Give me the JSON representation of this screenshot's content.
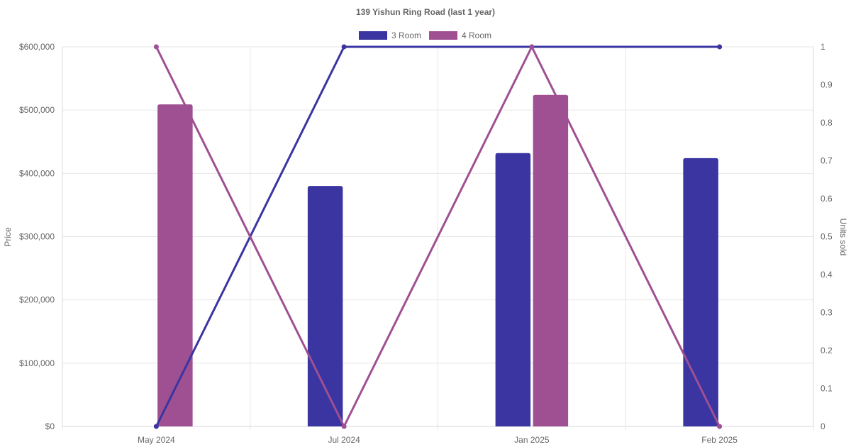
{
  "chart_data": {
    "type": "bar",
    "title": "139 Yishun Ring Road (last 1 year)",
    "categories": [
      "May 2024",
      "Jul 2024",
      "Jan 2025",
      "Feb 2025"
    ],
    "ylabel": "Price",
    "y2label": "Units sold",
    "ylim": [
      0,
      600000
    ],
    "y2lim": [
      0,
      1
    ],
    "yticks": [
      "$0",
      "$100,000",
      "$200,000",
      "$300,000",
      "$400,000",
      "$500,000",
      "$600,000"
    ],
    "y2ticks": [
      "0",
      "0.1",
      "0.2",
      "0.3",
      "0.4",
      "0.5",
      "0.6",
      "0.7",
      "0.8",
      "0.9",
      "1"
    ],
    "grid": true,
    "legend_position": "top",
    "series": [
      {
        "name": "3 Room",
        "kind": "bar",
        "axis": "price",
        "color": "#3a35a0",
        "values": [
          null,
          380000,
          432000,
          424000
        ]
      },
      {
        "name": "4 Room",
        "kind": "bar",
        "axis": "price",
        "color": "#9e5093",
        "values": [
          509000,
          null,
          524000,
          null
        ]
      },
      {
        "kind": "line",
        "axis": "units",
        "color": "#3a35a0",
        "values": [
          0,
          1,
          1,
          1
        ]
      },
      {
        "kind": "line",
        "axis": "units",
        "color": "#9e5093",
        "values": [
          1,
          0,
          1,
          0
        ]
      }
    ]
  }
}
